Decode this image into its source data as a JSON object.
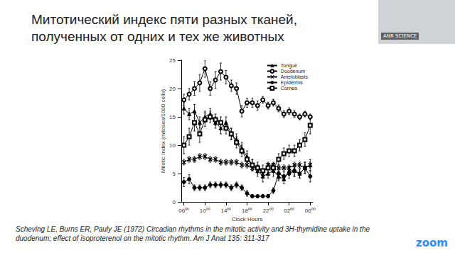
{
  "chart_data": {
    "type": "line",
    "x_label": "Clock Hours",
    "y_label": "Mitotic Index (mitoses/1000 cells)",
    "x": [
      6,
      7,
      8,
      9,
      10,
      11,
      12,
      13,
      14,
      15,
      16,
      17,
      18,
      19,
      20,
      21,
      22,
      23,
      24,
      25,
      26,
      27,
      28,
      29,
      30
    ],
    "series": [
      {
        "name": "Tongue",
        "color": "#000000",
        "marker": "triangle",
        "values": [
          16.5,
          15.5,
          16,
          14,
          15,
          15.5,
          14,
          13,
          14,
          12,
          11,
          9.5,
          8,
          6.5,
          5.5,
          4.5,
          5,
          5.5,
          4.5,
          4,
          5.5,
          5.5,
          5,
          6,
          6.5
        ],
        "errors": [
          1,
          1,
          1.2,
          1,
          1,
          1,
          1,
          1,
          1,
          1,
          1,
          1,
          1,
          1,
          1,
          1,
          0.8,
          1,
          0.8,
          0.8,
          0.8,
          1,
          0.8,
          1,
          1
        ]
      },
      {
        "name": "Duodenum",
        "color": "#000000",
        "marker": "open_circle",
        "values": [
          18,
          19,
          20,
          21,
          23.5,
          20,
          21.5,
          23,
          22,
          20.5,
          20,
          16,
          17.5,
          17.5,
          17,
          18,
          17,
          17.5,
          16.5,
          15.5,
          16,
          15.5,
          15,
          15.5,
          15
        ],
        "errors": [
          1,
          1,
          1.2,
          1.5,
          1.5,
          1.2,
          1.5,
          1.5,
          1.2,
          1,
          1,
          1,
          0.8,
          0.8,
          0.8,
          0.6,
          0.6,
          0.6,
          0.6,
          0.6,
          0.6,
          0.6,
          0.5,
          0.5,
          0.5
        ]
      },
      {
        "name": "Ameloblasts",
        "color": "#000000",
        "marker": "x",
        "values": [
          7,
          7.5,
          7.5,
          8,
          8,
          7.5,
          7.5,
          7,
          7,
          7,
          7,
          6.5,
          6.5,
          6,
          6,
          5,
          6.5,
          6.5,
          6,
          6,
          6,
          6.5,
          6.5,
          6,
          6.5
        ],
        "errors": [
          0.5,
          0.5,
          0.5,
          0.5,
          0.5,
          0.5,
          0.5,
          0.5,
          0.5,
          0.5,
          0.5,
          0.5,
          0.5,
          0.5,
          0.5,
          0.8,
          0.5,
          0.5,
          0.5,
          0.5,
          0.5,
          0.5,
          0.5,
          0.5,
          0.5
        ]
      },
      {
        "name": "Epidermis",
        "color": "#000000",
        "marker": "circle",
        "values": [
          3.5,
          4,
          2.5,
          2.5,
          2.5,
          3,
          3,
          3,
          3,
          2.5,
          3,
          2.5,
          1.5,
          1,
          1,
          1,
          1,
          2,
          5,
          4.5,
          5,
          5.5,
          5,
          6,
          4.5
        ],
        "errors": [
          0.8,
          0.8,
          0.5,
          0.5,
          0.5,
          0.5,
          0.5,
          0.5,
          0.5,
          0.5,
          0.5,
          0.5,
          0.5,
          0.3,
          0.3,
          0.3,
          0.3,
          0.5,
          1,
          0.8,
          0.8,
          1,
          0.8,
          1,
          1
        ]
      },
      {
        "name": "Cornea",
        "color": "#000000",
        "marker": "square",
        "values": [
          10,
          11.5,
          14,
          12,
          14.5,
          15,
          14.5,
          14,
          13,
          12,
          10.5,
          9,
          7.5,
          6.5,
          6,
          5.5,
          6,
          6,
          7.5,
          8.5,
          9,
          9,
          10,
          11,
          13.5
        ],
        "errors": [
          1.5,
          1.5,
          1.5,
          1.5,
          1.2,
          1,
          1,
          1,
          1,
          1,
          1,
          1,
          1,
          1,
          1,
          1,
          0.8,
          0.8,
          1,
          1,
          1,
          1,
          1,
          1.2,
          1.5
        ]
      }
    ],
    "xlim": [
      5.5,
      30.5
    ],
    "xticks": [
      {
        "value": 6,
        "label": "06⁰⁰"
      },
      {
        "value": 10,
        "label": "10⁰⁰"
      },
      {
        "value": 14,
        "label": "14⁰⁰"
      },
      {
        "value": 18,
        "label": "18⁰⁰"
      },
      {
        "value": 22,
        "label": "22⁰⁰"
      },
      {
        "value": 26,
        "label": "02⁰⁰"
      },
      {
        "value": 30,
        "label": "06⁰⁰"
      }
    ],
    "ylim": [
      0,
      25
    ],
    "yticks": [
      0,
      5,
      10,
      15,
      20,
      25
    ],
    "grid": false,
    "legend": "upper right"
  },
  "slide": {
    "title": "Митотический индекс пяти разных тканей, полученных от одних и тех же животных",
    "citation": "Scheving LE, Burns ER, Pauly JE (1972) Circadian rhythms in the mitotic activity and 3H-thymidine uptake in the duodenum; effect of isoproterenol on the mitotic rhythm. Am J Anat 135: 311-317",
    "video_label": "ANR SCIENCE",
    "logo": "zoom"
  }
}
